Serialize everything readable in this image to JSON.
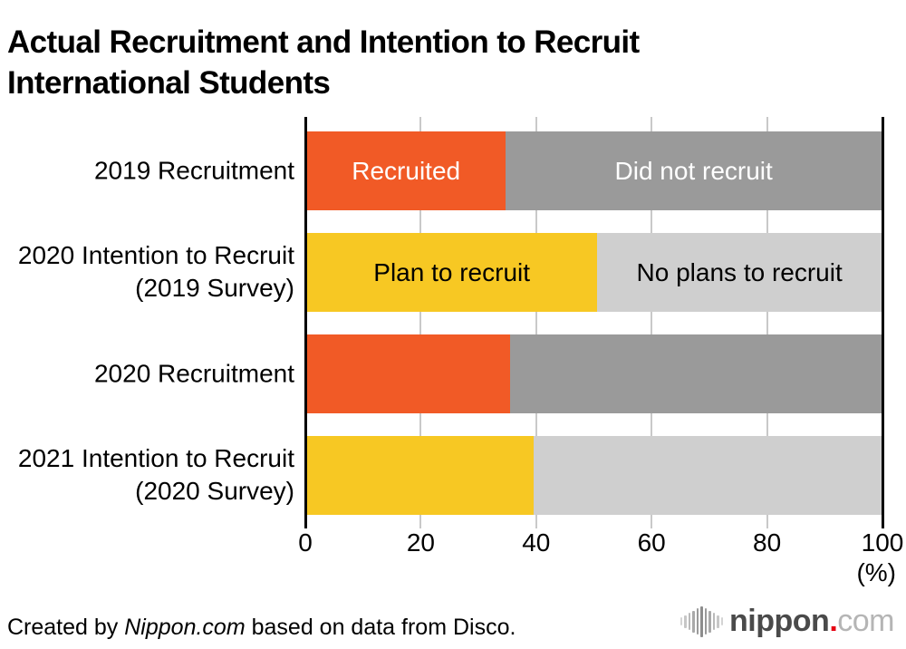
{
  "title": "Actual Recruitment and Intention to Recruit\nInternational Students",
  "chart_data": {
    "type": "bar",
    "orientation": "horizontal",
    "stacked": true,
    "unit": "%",
    "xlim": [
      0,
      100
    ],
    "x_ticks": [
      "0",
      "20",
      "40",
      "60",
      "80",
      "100"
    ],
    "x_axis_unit_label": "(%)",
    "grid": "vertical-light-gray",
    "legend": "labels-inside-bars",
    "rows": [
      {
        "label": "2019 Recruitment",
        "segments": [
          {
            "name": "Recruited",
            "value": 34.7,
            "color": "#f15a26",
            "text_color": "#ffffff"
          },
          {
            "name": "Did not recruit",
            "value": 65.3,
            "color": "#9a9a9a",
            "text_color": "#ffffff"
          }
        ]
      },
      {
        "label": "2020 Intention to Recruit\n(2019 Survey)",
        "segments": [
          {
            "name": "Plan to recruit",
            "value": 50.6,
            "color": "#f7c823",
            "text_color": "#000000"
          },
          {
            "name": "No plans to recruit",
            "value": 49.4,
            "color": "#cfcfcf",
            "text_color": "#000000"
          }
        ]
      },
      {
        "label": "2020 Recruitment",
        "segments": [
          {
            "name": "",
            "value": 35.5,
            "color": "#f15a26",
            "text_color": "#ffffff"
          },
          {
            "name": "",
            "value": 64.5,
            "color": "#9a9a9a",
            "text_color": "#ffffff"
          }
        ]
      },
      {
        "label": "2021 Intention to Recruit\n(2020 Survey)",
        "segments": [
          {
            "name": "",
            "value": 39.5,
            "color": "#f7c823",
            "text_color": "#000000"
          },
          {
            "name": "",
            "value": 60.5,
            "color": "#cfcfcf",
            "text_color": "#000000"
          }
        ]
      }
    ]
  },
  "footer": {
    "credit_prefix": "Created by ",
    "credit_source": "Nippon.com",
    "credit_suffix": " based on data from Disco.",
    "logo": {
      "icon": "soundwave-icon",
      "text_main": "nippon",
      "text_dot": ".",
      "text_tld": "com"
    }
  },
  "colors": {
    "recruited_orange": "#f15a26",
    "plan_yellow": "#f7c823",
    "did_not_gray": "#9a9a9a",
    "no_plans_light_gray": "#cfcfcf",
    "gridline": "#c9c9c9",
    "axis": "#000000",
    "logo_red": "#e60012"
  }
}
